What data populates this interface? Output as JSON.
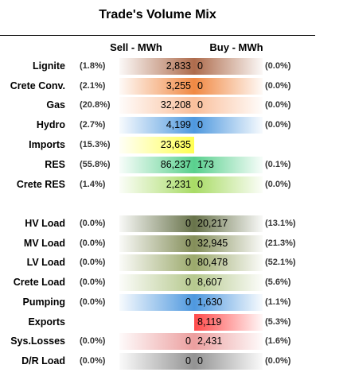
{
  "title": "Trade's Volume Mix",
  "headers": {
    "sell": "Sell - MWh",
    "buy": "Buy - MWh"
  },
  "rows": [
    {
      "label": "Lignite",
      "sell_pct": "(1.8%)",
      "sell": "2,833",
      "buy": "0",
      "buy_pct": "(0.0%)"
    },
    {
      "label": "Crete Conv.",
      "sell_pct": "(2.1%)",
      "sell": "3,255",
      "buy": "0",
      "buy_pct": "(0.0%)"
    },
    {
      "label": "Gas",
      "sell_pct": "(20.8%)",
      "sell": "32,208",
      "buy": "0",
      "buy_pct": "(0.0%)"
    },
    {
      "label": "Hydro",
      "sell_pct": "(2.7%)",
      "sell": "4,199",
      "buy": "0",
      "buy_pct": "(0.0%)"
    },
    {
      "label": "Imports",
      "sell_pct": "(15.3%)",
      "sell": "23,635",
      "buy": "",
      "buy_pct": ""
    },
    {
      "label": "RES",
      "sell_pct": "(55.8%)",
      "sell": "86,237",
      "buy": "173",
      "buy_pct": "(0.1%)"
    },
    {
      "label": "Crete RES",
      "sell_pct": "(1.4%)",
      "sell": "2,231",
      "buy": "0",
      "buy_pct": "(0.0%)"
    },
    {
      "label": "HV Load",
      "sell_pct": "(0.0%)",
      "sell": "0",
      "buy": "20,217",
      "buy_pct": "(13.1%)"
    },
    {
      "label": "MV Load",
      "sell_pct": "(0.0%)",
      "sell": "0",
      "buy": "32,945",
      "buy_pct": "(21.3%)"
    },
    {
      "label": "LV Load",
      "sell_pct": "(0.0%)",
      "sell": "0",
      "buy": "80,478",
      "buy_pct": "(52.1%)"
    },
    {
      "label": "Crete Load",
      "sell_pct": "(0.0%)",
      "sell": "0",
      "buy": "8,607",
      "buy_pct": "(5.6%)"
    },
    {
      "label": "Pumping",
      "sell_pct": "(0.0%)",
      "sell": "0",
      "buy": "1,630",
      "buy_pct": "(1.1%)"
    },
    {
      "label": "Exports",
      "sell_pct": "",
      "sell": "",
      "buy": "8,119",
      "buy_pct": "(5.3%)"
    },
    {
      "label": "Sys.Losses",
      "sell_pct": "(0.0%)",
      "sell": "0",
      "buy": "2,431",
      "buy_pct": "(1.6%)"
    },
    {
      "label": "D/R Load",
      "sell_pct": "(0.0%)",
      "sell": "0",
      "buy": "0",
      "buy_pct": "(0.0%)"
    }
  ],
  "colors": {
    "Lignite": "#a0522d",
    "Crete Conv.": "#ee7422",
    "Gas": "#f9b48a",
    "Hydro": "#2f86d9",
    "Imports": "#ffff33",
    "RES": "#3cc87a",
    "Crete RES": "#99d54a",
    "HV Load": "#4d5a2a",
    "MV Load": "#6e7a3c",
    "LV Load": "#8a9a52",
    "Crete Load": "#a9bf7a",
    "Pumping": "#2f86d9",
    "Exports": "#ff2a2a",
    "Sys.Losses": "#e88e8e",
    "D/R Load": "#808080"
  }
}
